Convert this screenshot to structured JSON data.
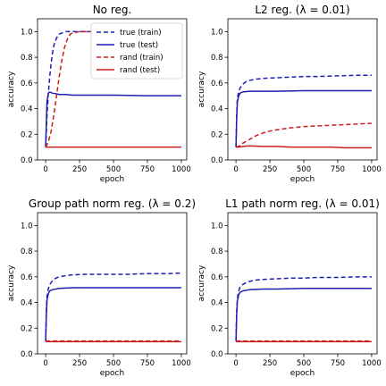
{
  "chart_data": [
    {
      "type": "line",
      "title": "No reg.",
      "xlabel": "epoch",
      "ylabel": "accuracy",
      "xlim": [
        -60,
        1040
      ],
      "ylim": [
        0.0,
        1.1
      ],
      "xticks": [
        0,
        250,
        500,
        750,
        1000
      ],
      "yticks": [
        0.0,
        0.2,
        0.4,
        0.6,
        0.8,
        1.0
      ],
      "legend": "upper-right",
      "series": [
        {
          "name": "true (train)",
          "color": "#1f1fb4",
          "dashed": true,
          "x": [
            0,
            10,
            20,
            30,
            40,
            50,
            60,
            80,
            100,
            120,
            150,
            200,
            300,
            500,
            750,
            1000
          ],
          "y": [
            0.1,
            0.35,
            0.52,
            0.65,
            0.75,
            0.83,
            0.89,
            0.95,
            0.98,
            0.99,
            1.0,
            1.0,
            1.0,
            1.0,
            1.0,
            1.0
          ]
        },
        {
          "name": "true (test)",
          "color": "#1f1fb4",
          "dashed": false,
          "x": [
            0,
            5,
            10,
            20,
            30,
            50,
            80,
            100,
            150,
            200,
            300,
            500,
            750,
            1000
          ],
          "y": [
            0.1,
            0.3,
            0.46,
            0.52,
            0.53,
            0.52,
            0.515,
            0.51,
            0.51,
            0.505,
            0.505,
            0.505,
            0.5,
            0.5
          ]
        },
        {
          "name": "rand (train)",
          "color": "#c81e1e",
          "dashed": true,
          "x": [
            0,
            20,
            40,
            60,
            80,
            100,
            120,
            140,
            160,
            180,
            200,
            250,
            300,
            500,
            750,
            1000
          ],
          "y": [
            0.1,
            0.14,
            0.22,
            0.35,
            0.5,
            0.65,
            0.78,
            0.88,
            0.94,
            0.98,
            0.99,
            1.0,
            1.0,
            1.0,
            1.0,
            1.0
          ]
        },
        {
          "name": "rand (test)",
          "color": "#c81e1e",
          "dashed": false,
          "x": [
            0,
            10,
            30,
            100,
            250,
            500,
            750,
            1000
          ],
          "y": [
            0.1,
            0.1,
            0.1,
            0.1,
            0.1,
            0.1,
            0.1,
            0.1
          ]
        }
      ]
    },
    {
      "type": "line",
      "title": "L2 reg. (λ = 0.01)",
      "xlabel": "epoch",
      "ylabel": "accuracy",
      "xlim": [
        -60,
        1040
      ],
      "ylim": [
        0.0,
        1.1
      ],
      "xticks": [
        0,
        250,
        500,
        750,
        1000
      ],
      "yticks": [
        0.0,
        0.2,
        0.4,
        0.6,
        0.8,
        1.0
      ],
      "series": [
        {
          "color": "#1f1fb4",
          "dashed": true,
          "x": [
            0,
            5,
            10,
            20,
            30,
            50,
            75,
            100,
            150,
            200,
            300,
            400,
            500,
            600,
            750,
            900,
            1000
          ],
          "y": [
            0.1,
            0.35,
            0.48,
            0.53,
            0.56,
            0.59,
            0.61,
            0.62,
            0.63,
            0.635,
            0.64,
            0.645,
            0.65,
            0.65,
            0.655,
            0.66,
            0.66
          ]
        },
        {
          "color": "#1f1fb4",
          "dashed": false,
          "x": [
            0,
            5,
            10,
            20,
            30,
            50,
            100,
            200,
            300,
            500,
            750,
            1000
          ],
          "y": [
            0.1,
            0.32,
            0.45,
            0.5,
            0.52,
            0.53,
            0.535,
            0.535,
            0.535,
            0.54,
            0.54,
            0.54
          ]
        },
        {
          "color": "#c81e1e",
          "dashed": true,
          "x": [
            0,
            25,
            50,
            100,
            150,
            200,
            250,
            300,
            400,
            500,
            600,
            700,
            800,
            900,
            1000
          ],
          "y": [
            0.1,
            0.11,
            0.13,
            0.16,
            0.19,
            0.21,
            0.225,
            0.235,
            0.25,
            0.26,
            0.265,
            0.27,
            0.275,
            0.28,
            0.285
          ]
        },
        {
          "color": "#c81e1e",
          "dashed": false,
          "x": [
            0,
            20,
            50,
            100,
            200,
            300,
            400,
            500,
            600,
            700,
            800,
            900,
            1000
          ],
          "y": [
            0.1,
            0.1,
            0.105,
            0.11,
            0.105,
            0.105,
            0.1,
            0.1,
            0.1,
            0.1,
            0.095,
            0.095,
            0.095
          ]
        }
      ]
    },
    {
      "type": "line",
      "title": "Group path norm reg. (λ = 0.2)",
      "xlabel": "epoch",
      "ylabel": "accuracy",
      "xlim": [
        -60,
        1040
      ],
      "ylim": [
        0.0,
        1.1
      ],
      "xticks": [
        0,
        250,
        500,
        750,
        1000
      ],
      "yticks": [
        0.0,
        0.2,
        0.4,
        0.6,
        0.8,
        1.0
      ],
      "series": [
        {
          "color": "#1f1fb4",
          "dashed": true,
          "x": [
            0,
            5,
            10,
            20,
            30,
            50,
            75,
            100,
            150,
            200,
            300,
            400,
            500,
            600,
            750,
            900,
            1000
          ],
          "y": [
            0.1,
            0.35,
            0.45,
            0.51,
            0.54,
            0.57,
            0.59,
            0.6,
            0.61,
            0.615,
            0.62,
            0.62,
            0.62,
            0.62,
            0.625,
            0.625,
            0.63
          ]
        },
        {
          "color": "#1f1fb4",
          "dashed": false,
          "x": [
            0,
            5,
            10,
            20,
            30,
            50,
            100,
            200,
            300,
            500,
            750,
            1000
          ],
          "y": [
            0.1,
            0.3,
            0.42,
            0.47,
            0.49,
            0.5,
            0.51,
            0.515,
            0.515,
            0.515,
            0.515,
            0.515
          ]
        },
        {
          "color": "#c81e1e",
          "dashed": true,
          "x": [
            0,
            50,
            100,
            200,
            300,
            400,
            500,
            600,
            700,
            800,
            900,
            1000
          ],
          "y": [
            0.1,
            0.1,
            0.1,
            0.1,
            0.1,
            0.1,
            0.1,
            0.1,
            0.1,
            0.1,
            0.1,
            0.1
          ]
        },
        {
          "color": "#c81e1e",
          "dashed": false,
          "x": [
            0,
            50,
            100,
            200,
            300,
            400,
            500,
            600,
            700,
            800,
            900,
            1000
          ],
          "y": [
            0.095,
            0.095,
            0.095,
            0.095,
            0.095,
            0.095,
            0.095,
            0.095,
            0.095,
            0.095,
            0.095,
            0.095
          ]
        }
      ]
    },
    {
      "type": "line",
      "title": "L1 path norm reg. (λ = 0.01)",
      "xlabel": "epoch",
      "ylabel": "accuracy",
      "xlim": [
        -60,
        1040
      ],
      "ylim": [
        0.0,
        1.1
      ],
      "xticks": [
        0,
        250,
        500,
        750,
        1000
      ],
      "yticks": [
        0.0,
        0.2,
        0.4,
        0.6,
        0.8,
        1.0
      ],
      "series": [
        {
          "color": "#1f1fb4",
          "dashed": true,
          "x": [
            0,
            5,
            10,
            20,
            30,
            50,
            75,
            100,
            150,
            200,
            300,
            400,
            500,
            600,
            750,
            900,
            1000
          ],
          "y": [
            0.1,
            0.33,
            0.43,
            0.49,
            0.52,
            0.54,
            0.555,
            0.565,
            0.575,
            0.58,
            0.585,
            0.59,
            0.59,
            0.595,
            0.595,
            0.6,
            0.6
          ]
        },
        {
          "color": "#1f1fb4",
          "dashed": false,
          "x": [
            0,
            5,
            10,
            20,
            30,
            50,
            100,
            200,
            300,
            500,
            750,
            1000
          ],
          "y": [
            0.1,
            0.3,
            0.41,
            0.46,
            0.48,
            0.49,
            0.5,
            0.505,
            0.505,
            0.51,
            0.51,
            0.51
          ]
        },
        {
          "color": "#c81e1e",
          "dashed": true,
          "x": [
            0,
            50,
            100,
            200,
            300,
            400,
            500,
            600,
            700,
            800,
            900,
            1000
          ],
          "y": [
            0.1,
            0.1,
            0.1,
            0.1,
            0.1,
            0.1,
            0.1,
            0.1,
            0.1,
            0.1,
            0.1,
            0.1
          ]
        },
        {
          "color": "#c81e1e",
          "dashed": false,
          "x": [
            0,
            50,
            100,
            200,
            300,
            400,
            500,
            600,
            700,
            800,
            900,
            1000
          ],
          "y": [
            0.095,
            0.095,
            0.095,
            0.095,
            0.095,
            0.095,
            0.095,
            0.095,
            0.095,
            0.095,
            0.095,
            0.095
          ]
        }
      ]
    }
  ]
}
